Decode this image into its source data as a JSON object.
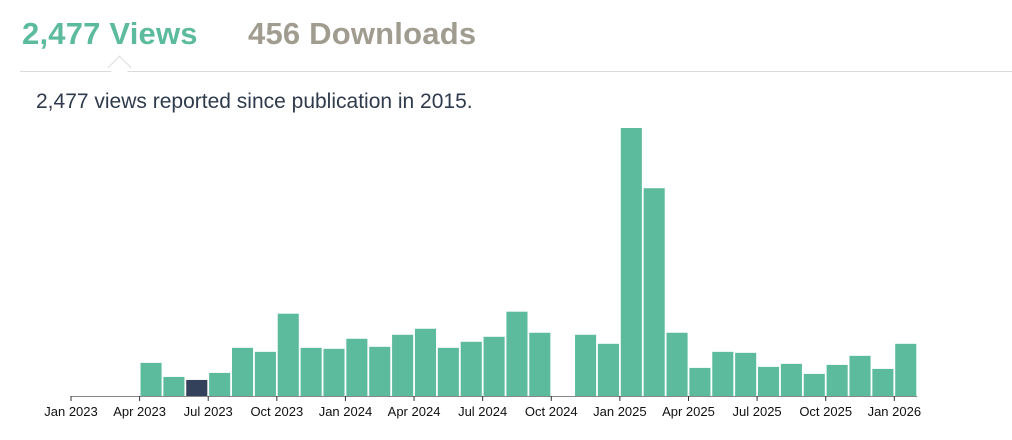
{
  "tabs": {
    "views_label": "2,477 Views",
    "downloads_label": "456 Downloads",
    "active": "views"
  },
  "summary_text": "2,477 views reported since publication in 2015.",
  "colors": {
    "active_tab": "#5cbb9d",
    "inactive_tab": "#a19c90",
    "bar": "#5cbb9d",
    "bar_highlight": "#34415a",
    "summary_text": "#2f3b4c"
  },
  "chart_data": {
    "type": "bar",
    "x_ticks": [
      "Jan 2023",
      "Apr 2023",
      "Jul 2023",
      "Oct 2023",
      "Jan 2024",
      "Apr 2024",
      "Jul 2024",
      "Oct 2024",
      "Jan 2025",
      "Apr 2025",
      "Jul 2025",
      "Oct 2025",
      "Jan 2026"
    ],
    "categories": [
      "Jan 2023",
      "Feb 2023",
      "Mar 2023",
      "Apr 2023",
      "May 2023",
      "Jun 2023",
      "Jul 2023",
      "Aug 2023",
      "Sep 2023",
      "Oct 2023",
      "Nov 2023",
      "Dec 2023",
      "Jan 2024",
      "Feb 2024",
      "Mar 2024",
      "Apr 2024",
      "May 2024",
      "Jun 2024",
      "Jul 2024",
      "Aug 2024",
      "Sep 2024",
      "Oct 2024",
      "Nov 2024",
      "Dec 2024",
      "Jan 2025",
      "Feb 2025",
      "Mar 2025",
      "Apr 2025",
      "May 2025",
      "Jun 2025",
      "Jul 2025",
      "Aug 2025",
      "Sep 2025",
      "Oct 2025",
      "Nov 2025",
      "Dec 2025",
      "Jan 2026"
    ],
    "values": [
      0,
      0,
      0,
      33,
      19,
      16,
      23,
      48,
      44,
      82,
      48,
      47,
      57,
      49,
      61,
      67,
      48,
      54,
      59,
      84,
      63,
      0,
      61,
      52,
      267,
      207,
      63,
      28,
      44,
      43,
      29,
      32,
      22,
      31,
      40,
      27,
      52
    ],
    "highlight_index": 5,
    "ylim": [
      0,
      270
    ],
    "grid": false,
    "legend": false
  }
}
